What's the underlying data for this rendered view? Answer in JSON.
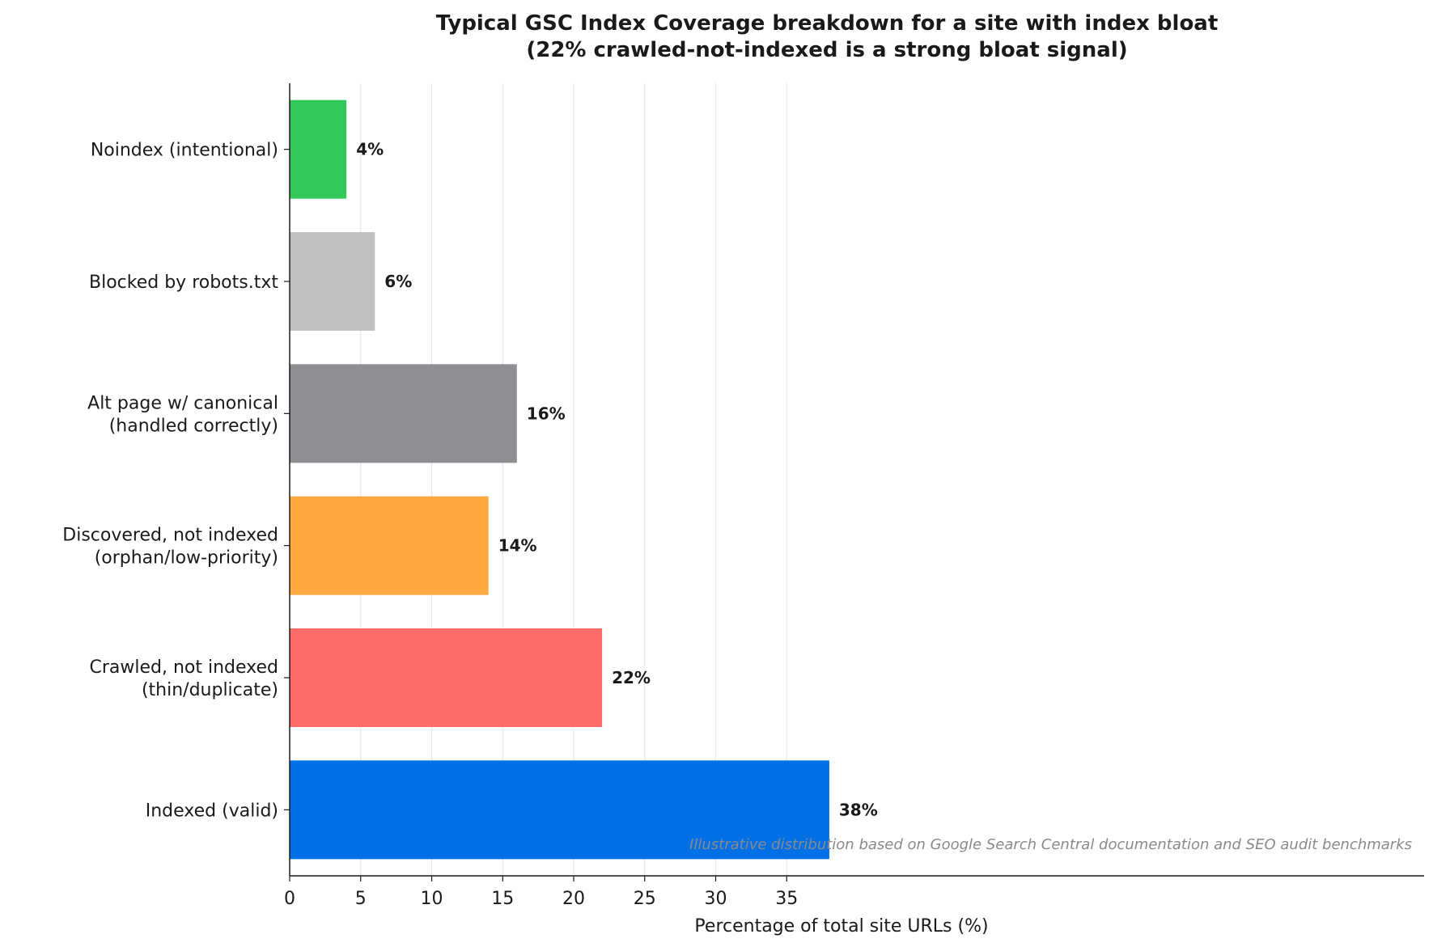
{
  "chart_data": {
    "type": "bar",
    "orientation": "horizontal",
    "title_line1": "Typical GSC Index Coverage breakdown for a site with index bloat",
    "title_line2": "(22% crawled-not-indexed is a strong bloat signal)",
    "xlabel": "Percentage of total site URLs (%)",
    "ylabel": "",
    "xlim": [
      0,
      40
    ],
    "xticks": [
      "0",
      "5",
      "10",
      "15",
      "20",
      "25",
      "30",
      "35"
    ],
    "grid": "vertical",
    "categories": [
      {
        "lines": [
          "Indexed (valid)"
        ],
        "value": 38,
        "value_label": "38%",
        "color": "#0070E6"
      },
      {
        "lines": [
          "Crawled, not indexed",
          "(thin/duplicate)"
        ],
        "value": 22,
        "value_label": "22%",
        "color": "#FF6B6B"
      },
      {
        "lines": [
          "Discovered, not indexed",
          "(orphan/low-priority)"
        ],
        "value": 14,
        "value_label": "14%",
        "color": "#FFA940"
      },
      {
        "lines": [
          "Alt page w/ canonical",
          "(handled correctly)"
        ],
        "value": 16,
        "value_label": "16%",
        "color": "#8E8E93"
      },
      {
        "lines": [
          "Blocked by robots.txt"
        ],
        "value": 6,
        "value_label": "6%",
        "color": "#C0C0C0"
      },
      {
        "lines": [
          "Noindex (intentional)"
        ],
        "value": 4,
        "value_label": "4%",
        "color": "#34C759"
      }
    ],
    "annotation": "Illustrative distribution based on Google Search Central documentation and SEO audit benchmarks"
  }
}
